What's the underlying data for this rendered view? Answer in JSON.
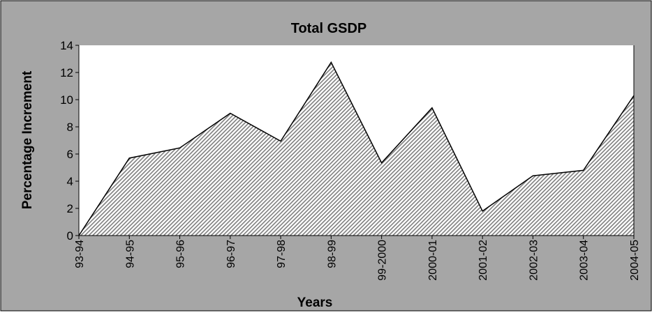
{
  "chart_data": {
    "type": "area",
    "title": "Total GSDP",
    "xlabel": "Years",
    "ylabel": "Percentage Increment",
    "categories": [
      "93-94",
      "94-95",
      "95-96",
      "96-97",
      "97-98",
      "98-99",
      "99-2000",
      "2000-01",
      "2001-02",
      "2002-03",
      "2003-04",
      "2004-05"
    ],
    "series": [
      {
        "values": [
          0,
          5.7,
          6.45,
          9.0,
          6.95,
          12.75,
          5.35,
          9.4,
          1.8,
          4.4,
          4.8,
          10.3
        ]
      }
    ],
    "ylim": [
      0,
      14
    ],
    "yticks": [
      "0",
      "2",
      "4",
      "6",
      "8",
      "10",
      "12",
      "14"
    ],
    "grid": false,
    "legend": "none",
    "colors": {
      "frame_bg": "#a6a6a6",
      "plot_bg": "#ffffff",
      "area_hatch": "#7f7f7f",
      "line": "#000000"
    }
  }
}
